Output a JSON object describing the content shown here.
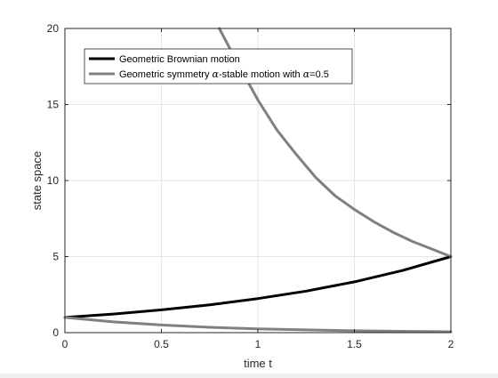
{
  "chart_data": {
    "type": "line",
    "xlabel": "time t",
    "ylabel": "state space",
    "xlim": [
      0,
      2
    ],
    "ylim": [
      0,
      20
    ],
    "xticks": [
      "0",
      "0.5",
      "1",
      "1.5",
      "2"
    ],
    "yticks": [
      "0",
      "5",
      "10",
      "15",
      "20"
    ],
    "grid": true,
    "legend_position": "top-left",
    "series": [
      {
        "name": "Geometric Brownian motion",
        "color": "#000000",
        "x": [
          0,
          0.25,
          0.5,
          0.75,
          1.0,
          1.25,
          1.5,
          1.75,
          2.0
        ],
        "y": [
          1.0,
          1.22,
          1.5,
          1.83,
          2.24,
          2.73,
          3.34,
          4.09,
          5.0
        ]
      },
      {
        "name_prefix": "Geometric symmetry ",
        "name_greek": "α",
        "name_middle": "-stable motion with ",
        "name_suffix": "=0.5",
        "color": "#808080",
        "x": [
          0.8,
          0.9,
          1.0,
          1.1,
          1.2,
          1.3,
          1.4,
          1.5,
          1.6,
          1.7,
          1.8,
          1.9,
          2.0
        ],
        "y": [
          20.0,
          17.6,
          15.3,
          13.3,
          11.7,
          10.2,
          9.0,
          8.1,
          7.3,
          6.6,
          6.0,
          5.5,
          5.0
        ]
      },
      {
        "color": "#808080",
        "x": [
          0,
          0.25,
          0.5,
          0.75,
          1.0,
          1.25,
          1.5,
          1.75,
          2.0
        ],
        "y": [
          1.0,
          0.71,
          0.5,
          0.35,
          0.25,
          0.18,
          0.12,
          0.09,
          0.06
        ]
      }
    ]
  }
}
